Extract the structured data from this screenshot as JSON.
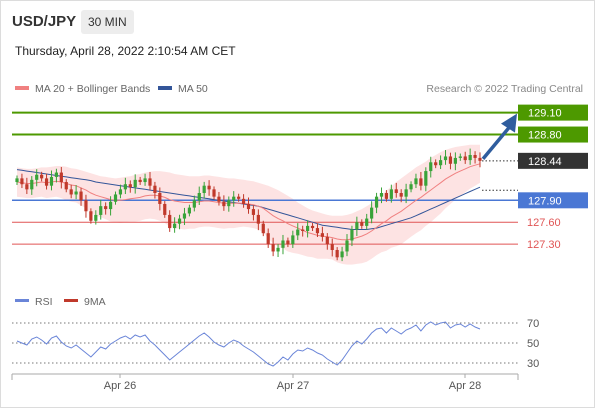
{
  "header": {
    "symbol": "USD/JPY",
    "timeframe": "30 MIN",
    "timestamp": "Thursday, April 28, 2022 2:10:54 AM CET"
  },
  "legend": {
    "ma20_label": "MA 20 + Bollinger Bands",
    "ma50_label": "MA 50",
    "copyright": "Research © 2022 Trading Central",
    "rsi_label": "RSI",
    "rsi9_label": "9MA"
  },
  "colors": {
    "bull": "#39a339",
    "bear": "#c0392b",
    "ma20": "#f08080",
    "bands": "#fcd9d9",
    "ma50": "#335599",
    "target": "#4d9900",
    "pivot": "#4a77d4",
    "support": "#e05555",
    "current": "#333333",
    "rsi": "#6a85d8",
    "arrow": "#2f5d9e"
  },
  "chart_data": [
    {
      "type": "candlestick",
      "title": "USD/JPY",
      "x_labels": [
        "Apr 26",
        "Apr 27",
        "Apr 28"
      ],
      "ylim": [
        126.7,
        129.3
      ],
      "last_price": 128.44,
      "levels": [
        {
          "value": 129.1,
          "label": "129.10",
          "kind": "target"
        },
        {
          "value": 128.8,
          "label": "128.80",
          "kind": "target"
        },
        {
          "value": 127.9,
          "label": "127.90",
          "kind": "pivot"
        },
        {
          "value": 127.6,
          "label": "127.60",
          "kind": "support"
        },
        {
          "value": 127.3,
          "label": "127.30",
          "kind": "support"
        }
      ],
      "close": [
        128.2,
        128.12,
        128.05,
        128.18,
        128.25,
        128.2,
        128.1,
        128.22,
        128.28,
        128.15,
        128.05,
        127.98,
        128.02,
        127.9,
        127.75,
        127.62,
        127.7,
        127.82,
        127.78,
        127.88,
        127.98,
        128.05,
        128.12,
        128.08,
        128.18,
        128.15,
        128.2,
        128.1,
        128.0,
        127.85,
        127.7,
        127.52,
        127.58,
        127.65,
        127.72,
        127.8,
        127.9,
        128.0,
        128.1,
        128.05,
        127.95,
        127.88,
        127.82,
        127.9,
        127.95,
        127.92,
        127.85,
        127.78,
        127.7,
        127.58,
        127.45,
        127.3,
        127.2,
        127.25,
        127.35,
        127.3,
        127.42,
        127.5,
        127.48,
        127.55,
        127.52,
        127.45,
        127.4,
        127.3,
        127.22,
        127.12,
        127.2,
        127.35,
        127.5,
        127.6,
        127.55,
        127.65,
        127.8,
        127.95,
        128.0,
        127.92,
        128.05,
        128.0,
        127.95,
        128.05,
        128.12,
        128.2,
        128.1,
        128.3,
        128.42,
        128.38,
        128.45,
        128.5,
        128.4,
        128.48,
        128.5,
        128.45,
        128.52,
        128.48,
        128.44
      ],
      "ma20": [
        128.15,
        128.14,
        128.13,
        128.13,
        128.14,
        128.15,
        128.14,
        128.15,
        128.16,
        128.15,
        128.13,
        128.11,
        128.1,
        128.07,
        128.04,
        128.0,
        127.97,
        127.95,
        127.93,
        127.91,
        127.9,
        127.9,
        127.91,
        127.92,
        127.93,
        127.94,
        127.96,
        127.97,
        127.97,
        127.96,
        127.94,
        127.91,
        127.89,
        127.88,
        127.87,
        127.87,
        127.87,
        127.88,
        127.89,
        127.89,
        127.88,
        127.87,
        127.86,
        127.86,
        127.86,
        127.86,
        127.86,
        127.85,
        127.84,
        127.82,
        127.79,
        127.74,
        127.69,
        127.65,
        127.62,
        127.58,
        127.55,
        127.52,
        127.49,
        127.46,
        127.44,
        127.42,
        127.41,
        127.4,
        127.39,
        127.37,
        127.36,
        127.36,
        127.37,
        127.39,
        127.41,
        127.44,
        127.48,
        127.53,
        127.58,
        127.62,
        127.67,
        127.71,
        127.75,
        127.8,
        127.85,
        127.9,
        127.94,
        127.99,
        128.04,
        128.09,
        128.14,
        128.19,
        128.23,
        128.27,
        128.3,
        128.33,
        128.36,
        128.38,
        128.4
      ],
      "upper": [
        128.35,
        128.34,
        128.33,
        128.33,
        128.34,
        128.35,
        128.35,
        128.36,
        128.37,
        128.37,
        128.36,
        128.34,
        128.33,
        128.31,
        128.29,
        128.27,
        128.25,
        128.23,
        128.22,
        128.21,
        128.2,
        128.21,
        128.22,
        128.23,
        128.25,
        128.26,
        128.28,
        128.29,
        128.3,
        128.3,
        128.29,
        128.28,
        128.26,
        128.25,
        128.24,
        128.23,
        128.23,
        128.23,
        128.24,
        128.24,
        128.23,
        128.22,
        128.21,
        128.2,
        128.2,
        128.19,
        128.18,
        128.17,
        128.16,
        128.14,
        128.12,
        128.1,
        128.07,
        128.04,
        128.0,
        127.96,
        127.92,
        127.87,
        127.83,
        127.79,
        127.76,
        127.74,
        127.72,
        127.7,
        127.69,
        127.69,
        127.69,
        127.7,
        127.72,
        127.75,
        127.78,
        127.82,
        127.86,
        127.91,
        127.97,
        128.03,
        128.09,
        128.15,
        128.2,
        128.25,
        128.3,
        128.35,
        128.39,
        128.43,
        128.48,
        128.52,
        128.56,
        128.59,
        128.61,
        128.63,
        128.64,
        128.65,
        128.66,
        128.66,
        128.66
      ],
      "lower": [
        127.95,
        127.94,
        127.93,
        127.93,
        127.94,
        127.95,
        127.93,
        127.94,
        127.95,
        127.93,
        127.9,
        127.88,
        127.87,
        127.83,
        127.79,
        127.73,
        127.69,
        127.67,
        127.64,
        127.61,
        127.6,
        127.59,
        127.6,
        127.61,
        127.61,
        127.62,
        127.64,
        127.65,
        127.64,
        127.62,
        127.59,
        127.54,
        127.52,
        127.51,
        127.5,
        127.51,
        127.51,
        127.53,
        127.54,
        127.54,
        127.53,
        127.52,
        127.51,
        127.52,
        127.52,
        127.53,
        127.54,
        127.53,
        127.52,
        127.5,
        127.46,
        127.38,
        127.31,
        127.26,
        127.24,
        127.2,
        127.18,
        127.17,
        127.15,
        127.13,
        127.12,
        127.1,
        127.1,
        127.1,
        127.09,
        127.05,
        127.03,
        127.02,
        127.02,
        127.03,
        127.04,
        127.06,
        127.1,
        127.15,
        127.19,
        127.21,
        127.25,
        127.27,
        127.3,
        127.35,
        127.4,
        127.45,
        127.49,
        127.55,
        127.6,
        127.66,
        127.72,
        127.79,
        127.85,
        127.91,
        127.96,
        128.01,
        128.06,
        128.1,
        128.14
      ],
      "ma50": [
        128.32,
        128.31,
        128.3,
        128.29,
        128.28,
        128.27,
        128.26,
        128.25,
        128.24,
        128.23,
        128.22,
        128.21,
        128.2,
        128.19,
        128.18,
        128.17,
        128.15,
        128.14,
        128.13,
        128.12,
        128.11,
        128.1,
        128.09,
        128.08,
        128.07,
        128.06,
        128.05,
        128.04,
        128.03,
        128.02,
        128.01,
        128.0,
        127.99,
        127.98,
        127.97,
        127.96,
        127.95,
        127.94,
        127.93,
        127.92,
        127.91,
        127.9,
        127.89,
        127.88,
        127.87,
        127.86,
        127.85,
        127.84,
        127.83,
        127.82,
        127.8,
        127.78,
        127.76,
        127.74,
        127.72,
        127.7,
        127.68,
        127.66,
        127.64,
        127.62,
        127.6,
        127.58,
        127.56,
        127.55,
        127.54,
        127.53,
        127.52,
        127.51,
        127.5,
        127.5,
        127.5,
        127.5,
        127.51,
        127.52,
        127.54,
        127.56,
        127.58,
        127.6,
        127.62,
        127.64,
        127.66,
        127.69,
        127.72,
        127.75,
        127.78,
        127.81,
        127.84,
        127.87,
        127.9,
        127.93,
        127.96,
        127.99,
        128.02,
        128.05,
        128.08
      ],
      "forecast": {
        "from": 128.44,
        "to": 129.1
      }
    },
    {
      "type": "line",
      "title": "RSI",
      "ylim": [
        25,
        75
      ],
      "y_ticks": [
        "70",
        "50",
        "30"
      ],
      "rsi": [
        52,
        50,
        48,
        54,
        56,
        53,
        49,
        55,
        57,
        51,
        47,
        45,
        48,
        44,
        40,
        36,
        41,
        46,
        44,
        49,
        52,
        55,
        57,
        54,
        58,
        56,
        58,
        52,
        48,
        43,
        38,
        33,
        37,
        41,
        45,
        49,
        53,
        57,
        60,
        56,
        51,
        48,
        46,
        50,
        53,
        51,
        47,
        44,
        41,
        37,
        33,
        29,
        27,
        31,
        36,
        33,
        39,
        43,
        42,
        45,
        43,
        40,
        38,
        34,
        31,
        28,
        33,
        40,
        47,
        52,
        49,
        54,
        60,
        64,
        65,
        60,
        65,
        62,
        59,
        63,
        65,
        68,
        62,
        68,
        71,
        68,
        70,
        71,
        65,
        68,
        69,
        66,
        69,
        66,
        64
      ],
      "rsi9": [
        52,
        51,
        51,
        51,
        52,
        52,
        51,
        52,
        53,
        53,
        52,
        51,
        50,
        49,
        47,
        45,
        44,
        44,
        44,
        45,
        46,
        48,
        50,
        51,
        53,
        54,
        55,
        55,
        54,
        52,
        50,
        47,
        45,
        43,
        42,
        42,
        43,
        45,
        47,
        49,
        51,
        52,
        52,
        52,
        51,
        50,
        49,
        48,
        47,
        45,
        43,
        40,
        37,
        35,
        34,
        33,
        33,
        34,
        35,
        37,
        38,
        39,
        40,
        40,
        39,
        37,
        36,
        36,
        37,
        39,
        41,
        43,
        46,
        49,
        52,
        54,
        56,
        58,
        60,
        61,
        62,
        63,
        63,
        64,
        65,
        66,
        66,
        67,
        68,
        68,
        68,
        68,
        68,
        68,
        67
      ]
    }
  ]
}
